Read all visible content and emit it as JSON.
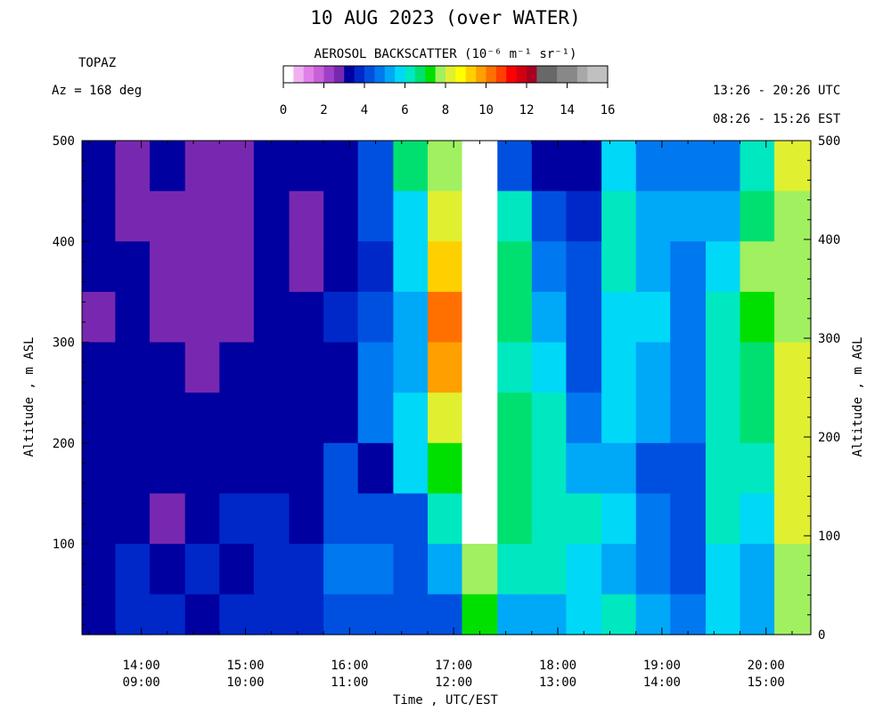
{
  "header": {
    "title": "10 AUG 2023 (over WATER)",
    "instrument": "TOPAZ",
    "azimuth": "Az = 168 deg",
    "utc_range": "13:26 - 20:26 UTC",
    "est_range": "08:26 - 15:26 EST"
  },
  "colorbar": {
    "title": "AEROSOL BACKSCATTER (10⁻⁶ m⁻¹ sr⁻¹)",
    "ticks": [
      "0",
      "2",
      "4",
      "6",
      "8",
      "10",
      "12",
      "14",
      "16"
    ],
    "range": [
      0,
      16
    ],
    "colors": [
      "#ffffff",
      "#f0b0f0",
      "#e080e8",
      "#c860d8",
      "#a040c8",
      "#7828b0",
      "#0000a0",
      "#0028c8",
      "#0050e0",
      "#0078f0",
      "#00a8f8",
      "#00d8f8",
      "#00e8c0",
      "#00e070",
      "#00e000",
      "#a0f060",
      "#e0f030",
      "#ffff00",
      "#ffd000",
      "#ffa000",
      "#ff7000",
      "#ff4000",
      "#ff0000",
      "#d00010",
      "#a80020",
      "#686868",
      "#686868",
      "#888888",
      "#888888",
      "#a8a8a8",
      "#c0c0c0",
      "#c0c0c0"
    ]
  },
  "axes": {
    "xtitle": "Time , UTC/EST",
    "ytitle_left": "Altitude , m ASL",
    "ytitle_right": "Altitude , m AGL"
  },
  "chart_data": {
    "type": "heatmap",
    "title": "10 AUG 2023 (over WATER)",
    "xlabel": "Time , UTC/EST",
    "ylabel": "Altitude , m ASL",
    "y2label": "Altitude , m AGL",
    "x_ticks_utc": [
      "14:00",
      "15:00",
      "16:00",
      "17:00",
      "18:00",
      "19:00",
      "20:00"
    ],
    "x_ticks_est": [
      "09:00",
      "10:00",
      "11:00",
      "12:00",
      "13:00",
      "14:00",
      "15:00"
    ],
    "x_tick_hours_utc": [
      14,
      15,
      16,
      17,
      18,
      19,
      20
    ],
    "xlim_hours_utc": [
      13.43,
      20.43
    ],
    "y_left_ticks": [
      100,
      200,
      300,
      400,
      500
    ],
    "ylim_left": [
      10,
      500
    ],
    "y_right_ticks": [
      0,
      100,
      200,
      300,
      400,
      500
    ],
    "ylim_right": [
      0,
      500
    ],
    "color_scale": [
      0,
      16
    ],
    "altitude_bands_m_asl": [
      [
        450,
        500
      ],
      [
        400,
        450
      ],
      [
        350,
        400
      ],
      [
        300,
        350
      ],
      [
        250,
        300
      ],
      [
        200,
        250
      ],
      [
        150,
        200
      ],
      [
        100,
        150
      ],
      [
        50,
        100
      ],
      [
        10,
        50
      ]
    ],
    "time_columns_hours_utc": [
      13.43,
      13.75,
      14.08,
      14.42,
      14.75,
      15.08,
      15.42,
      15.75,
      16.08,
      16.42,
      16.75,
      17.08,
      17.42,
      17.75,
      18.08,
      18.42,
      18.75,
      19.08,
      19.42,
      19.75,
      20.08
    ],
    "values_by_band": [
      [
        3.4,
        2.8,
        3.0,
        2.8,
        2.8,
        3.4,
        3.0,
        3.2,
        4.2,
        6.6,
        7.8,
        0,
        4.4,
        3.3,
        3.4,
        5.8,
        4.8,
        4.8,
        4.6,
        6.2,
        8.0
      ],
      [
        3.2,
        2.9,
        2.9,
        2.9,
        2.9,
        3.0,
        2.9,
        3.0,
        4.0,
        5.8,
        8.0,
        0,
        6.4,
        4.2,
        3.8,
        6.2,
        5.2,
        5.0,
        5.2,
        6.8,
        7.8
      ],
      [
        3.0,
        3.2,
        2.9,
        2.7,
        2.9,
        3.0,
        2.8,
        3.2,
        3.6,
        5.8,
        9.2,
        0,
        6.8,
        4.8,
        4.0,
        6.0,
        5.2,
        4.6,
        5.8,
        7.6,
        7.8
      ],
      [
        2.9,
        3.3,
        2.9,
        2.6,
        2.8,
        3.0,
        3.2,
        3.6,
        4.4,
        5.4,
        10.0,
        0,
        6.6,
        5.4,
        4.2,
        5.6,
        5.6,
        4.8,
        6.0,
        7.2,
        7.6
      ],
      [
        3.3,
        3.2,
        3.0,
        2.9,
        3.0,
        3.2,
        3.4,
        3.4,
        4.6,
        5.4,
        9.6,
        0,
        6.4,
        5.8,
        4.2,
        5.6,
        5.4,
        4.6,
        6.4,
        6.8,
        8.0
      ],
      [
        3.3,
        3.0,
        3.0,
        3.2,
        3.2,
        3.4,
        3.3,
        3.0,
        4.6,
        5.6,
        8.4,
        0,
        6.8,
        6.4,
        4.8,
        5.6,
        5.0,
        4.6,
        6.0,
        6.6,
        8.4
      ],
      [
        3.0,
        3.2,
        3.1,
        3.2,
        3.0,
        3.4,
        3.3,
        4.2,
        3.0,
        5.8,
        7.4,
        0,
        6.6,
        6.4,
        5.4,
        5.0,
        4.4,
        4.4,
        6.2,
        6.4,
        8.2
      ],
      [
        3.2,
        3.3,
        2.9,
        3.4,
        3.6,
        3.6,
        3.4,
        4.4,
        4.4,
        4.2,
        6.2,
        0,
        6.8,
        6.4,
        6.0,
        5.6,
        4.8,
        4.4,
        6.0,
        5.8,
        8.0
      ],
      [
        3.4,
        3.6,
        3.2,
        3.6,
        3.3,
        3.6,
        3.8,
        4.6,
        4.6,
        4.4,
        5.4,
        7.6,
        6.0,
        6.2,
        5.8,
        5.4,
        4.8,
        4.2,
        5.6,
        5.4,
        7.8
      ],
      [
        3.4,
        3.6,
        3.8,
        3.4,
        3.6,
        3.6,
        3.6,
        4.4,
        4.4,
        4.4,
        4.4,
        7.0,
        5.4,
        5.4,
        5.8,
        6.2,
        5.4,
        4.6,
        5.6,
        5.2,
        7.6
      ]
    ],
    "blank_region": "no data 17:08-17:42 UTC above 120 m"
  }
}
